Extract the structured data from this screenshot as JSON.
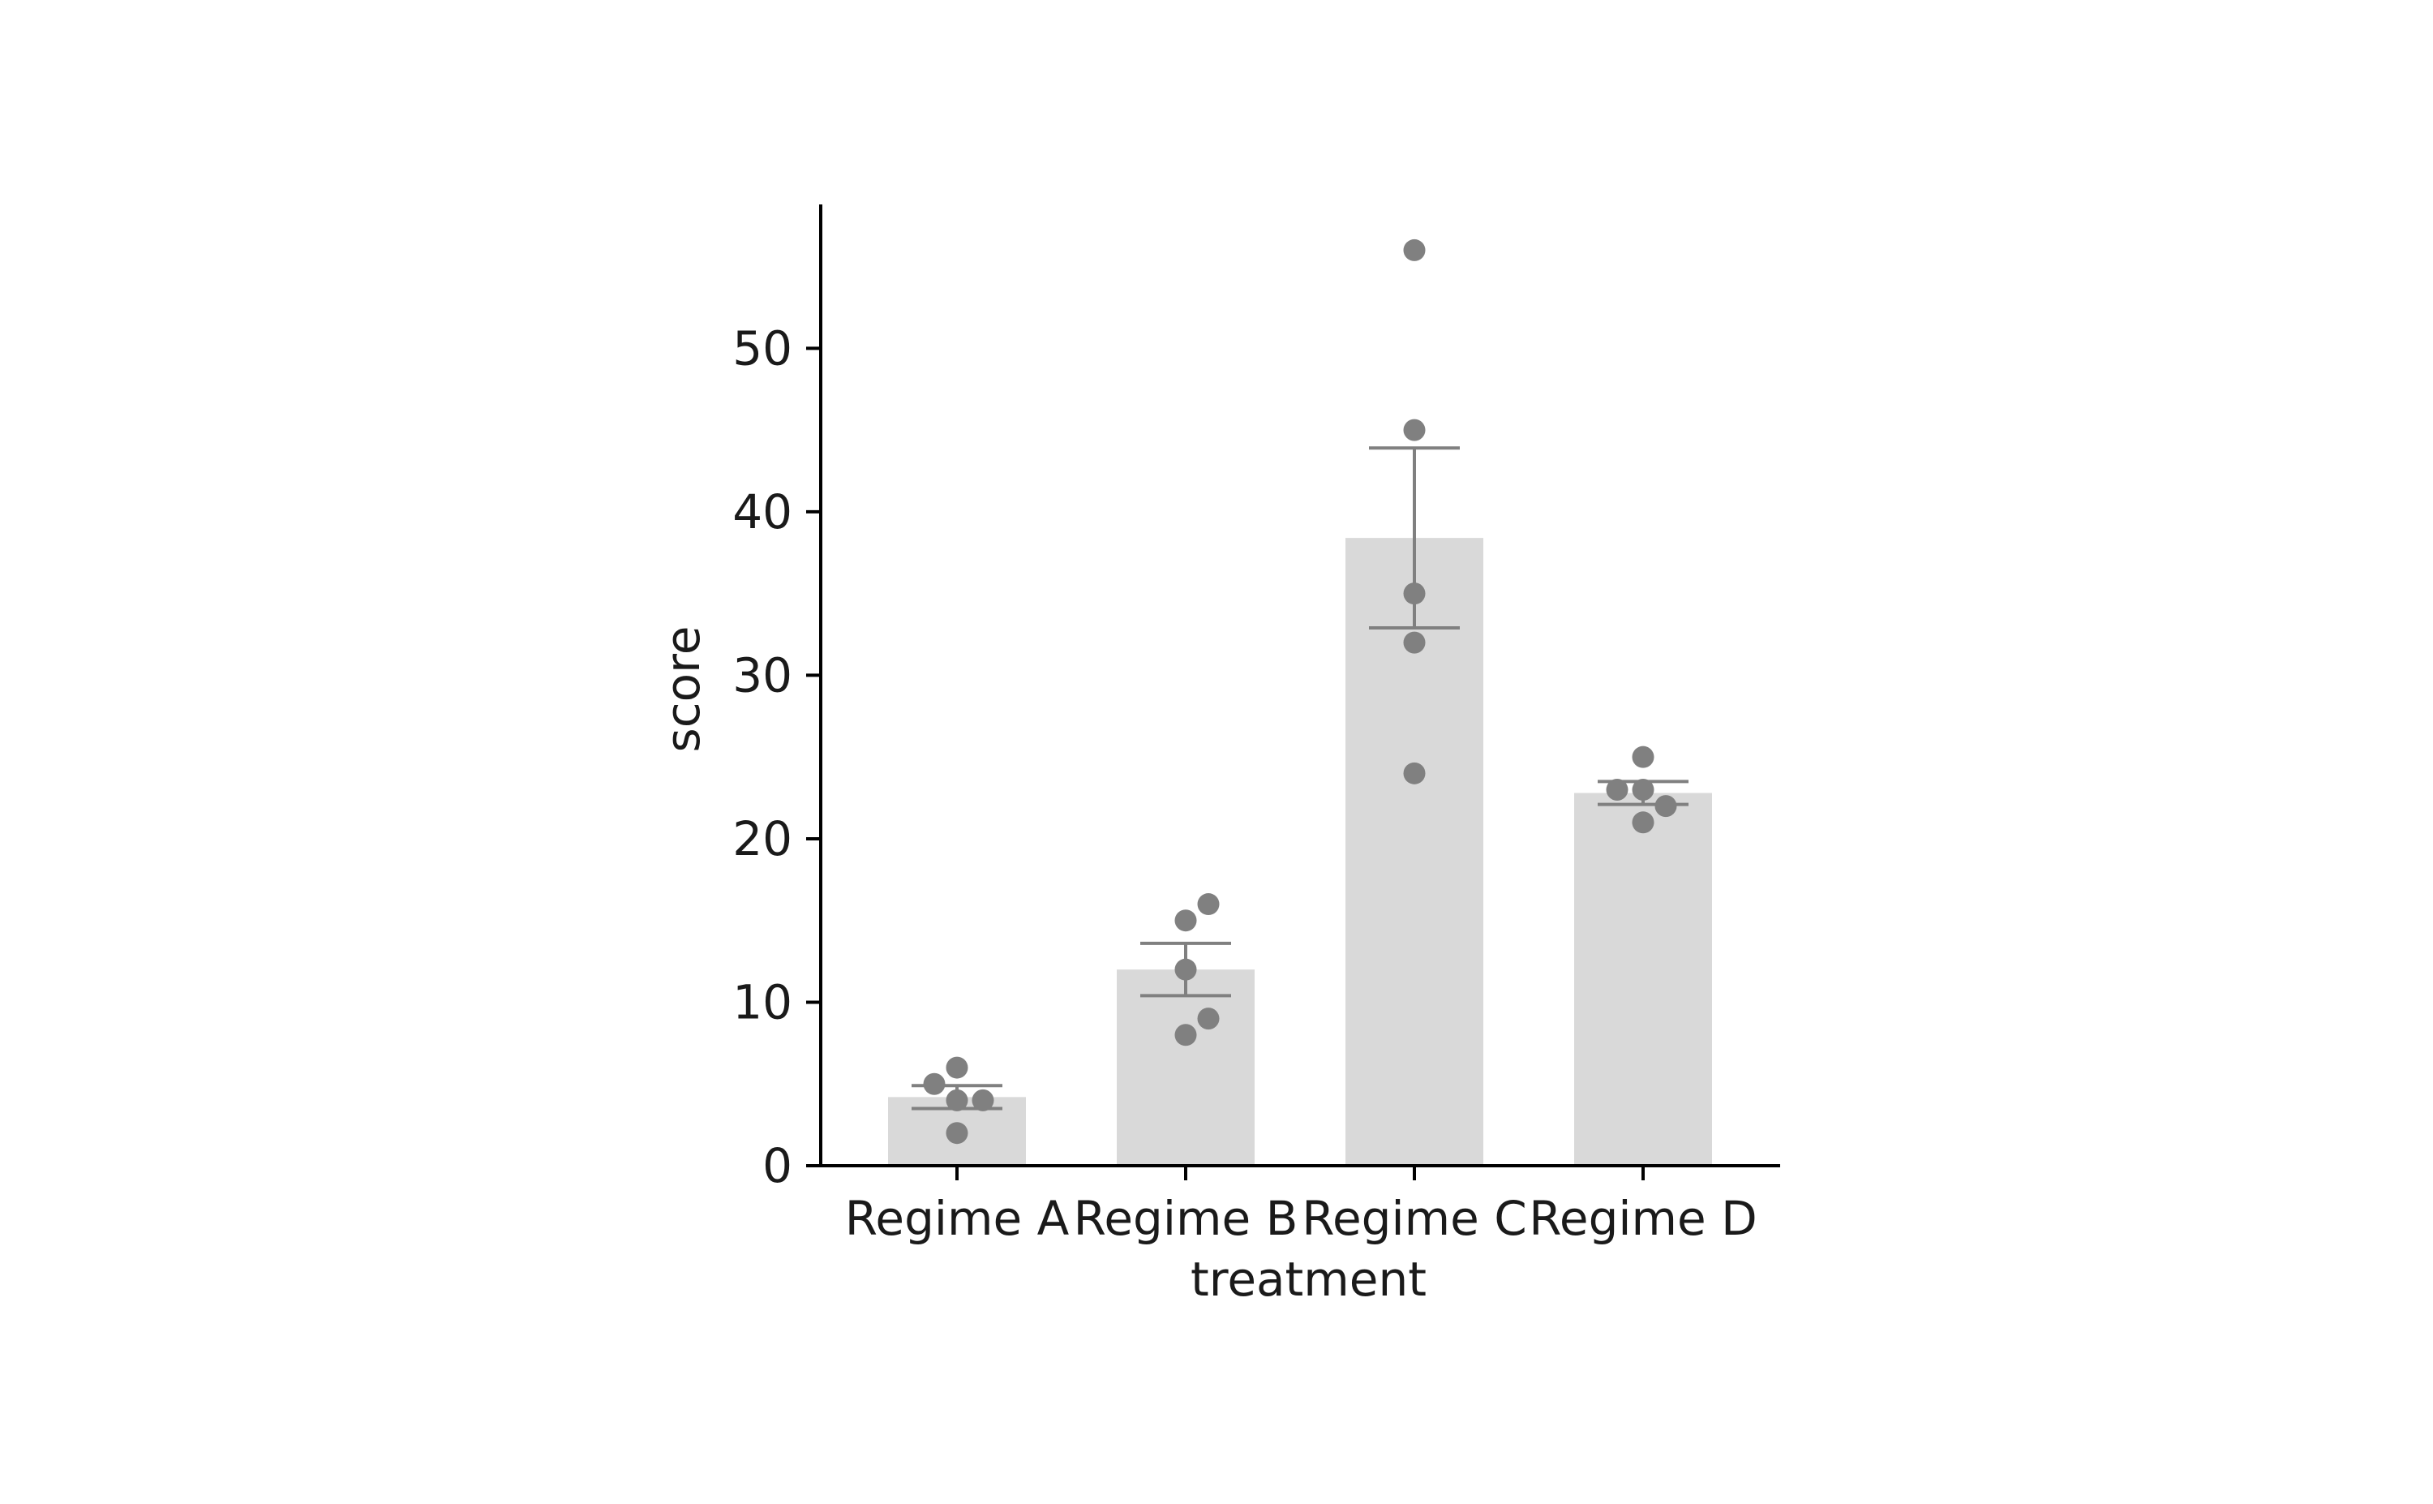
{
  "chart_data": {
    "type": "bar",
    "title": "",
    "xlabel": "treatment",
    "ylabel": "score",
    "categories": [
      "Regime A",
      "Regime B",
      "Regime C",
      "Regime D"
    ],
    "values": [
      4.2,
      12.0,
      38.4,
      22.8
    ],
    "error": [
      {
        "low": 3.5,
        "high": 4.9
      },
      {
        "low": 10.4,
        "high": 13.6
      },
      {
        "low": 32.9,
        "high": 43.9
      },
      {
        "low": 22.1,
        "high": 23.5
      }
    ],
    "points": [
      [
        6,
        5,
        4,
        4,
        2
      ],
      [
        16,
        15,
        12,
        9,
        8
      ],
      [
        56,
        45,
        35,
        32,
        24
      ],
      [
        25,
        23,
        23,
        22,
        21
      ]
    ],
    "ylim": [
      0,
      58.8
    ],
    "yticks": [
      0,
      10,
      20,
      30,
      40,
      50
    ],
    "grid": false,
    "legend": "none",
    "colors": {
      "bar": "#d9d9d9",
      "point": "#808080",
      "errorbar": "#808080",
      "axis": "#000000"
    }
  }
}
